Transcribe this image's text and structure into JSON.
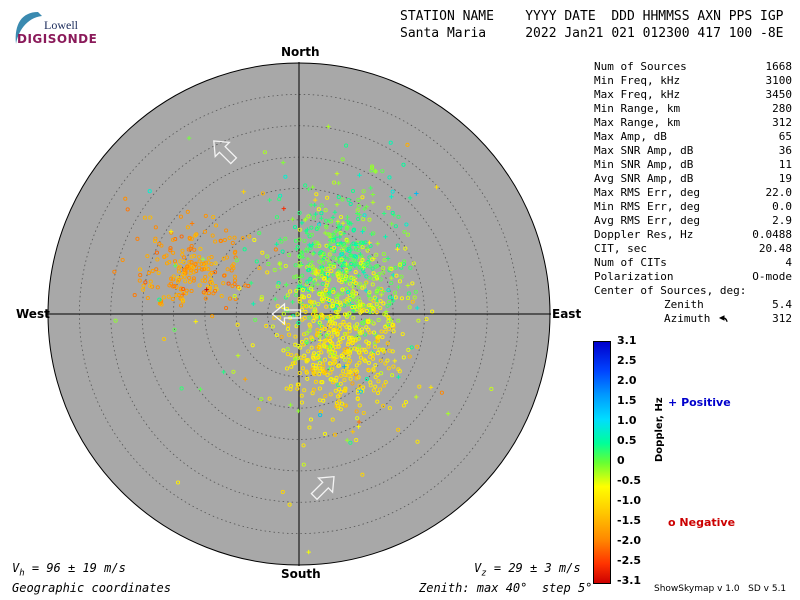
{
  "logo": {
    "line1": "Lowell",
    "line2": "DIGISONDE"
  },
  "header": {
    "names": "STATION NAME    YYYY DATE  DDD HHMMSS AXN PPS IGP",
    "values": "Santa Maria     2022 Jan21 021 012300 417 100 -8E"
  },
  "compass": {
    "north": "North",
    "south": "South",
    "east": "East",
    "west": "West"
  },
  "stats": [
    {
      "label": "Num of Sources",
      "value": "1668"
    },
    {
      "label": "Min Freq, kHz",
      "value": "3100"
    },
    {
      "label": "Max Freq, kHz",
      "value": "3450"
    },
    {
      "label": "Min Range, km",
      "value": "280"
    },
    {
      "label": "Max Range, km",
      "value": "312"
    },
    {
      "label": "Max Amp, dB",
      "value": "65"
    },
    {
      "label": "Max SNR Amp, dB",
      "value": "36"
    },
    {
      "label": "Min SNR Amp, dB",
      "value": "11"
    },
    {
      "label": "Avg SNR Amp, dB",
      "value": "19"
    },
    {
      "label": "Max RMS Err, deg",
      "value": "22.0"
    },
    {
      "label": "Min RMS Err, deg",
      "value": "0.0"
    },
    {
      "label": "Avg RMS Err, deg",
      "value": "2.9"
    },
    {
      "label": "Doppler Res, Hz",
      "value": "0.0488"
    },
    {
      "label": "CIT, sec",
      "value": "20.48"
    },
    {
      "label": "Num of CITs",
      "value": "4"
    },
    {
      "label": "Polarization",
      "value": "O-mode"
    }
  ],
  "center": {
    "title": "Center of Sources, deg:",
    "zenith_label": "Zenith",
    "zenith_value": "5.4",
    "azimuth_label": "Azimuth",
    "azimuth_value": "312"
  },
  "colorbar": {
    "label": "Doppler, Hz",
    "ticks": [
      "3.1",
      "2.5",
      "2.0",
      "1.5",
      "1.0",
      "0.5",
      "0",
      "-0.5",
      "-1.0",
      "-1.5",
      "-2.0",
      "-2.5",
      "-3.1"
    ],
    "min": -3.1,
    "max": 3.1
  },
  "legend": {
    "positive_symbol": "+",
    "positive_label": "Positive",
    "positive_color": "#0000cc",
    "negative_symbol": "o",
    "negative_label": "Negative",
    "negative_color": "#cc0000"
  },
  "footer": {
    "vh_prefix": "V",
    "vh_sub": "h",
    "vh_text": " = 96 ± 19 m/s",
    "vz_prefix": "V",
    "vz_sub": "z",
    "vz_text": " = 29 ± 3 m/s",
    "coords": "Geographic coordinates",
    "zenith": "Zenith: max 40°  step 5°",
    "software": "ShowSkymap v 1.0   SD v 5.1"
  },
  "chart_data": {
    "type": "scatter",
    "projection": "polar skymap (zenith angle radial, azimuth angular)",
    "zenith_max_deg": 40,
    "zenith_step_deg": 5,
    "color_scale": "Doppler, Hz from -3.1 to 3.1",
    "clusters": [
      {
        "center_east_deg": -17.5,
        "center_north_deg": 7.0,
        "spread_east_deg": 4.6,
        "spread_north_deg": 3.2,
        "count": 210,
        "doppler_hz": -1.6,
        "doppler_spread": 0.2,
        "marker": "o"
      },
      {
        "center_east_deg": 6.0,
        "center_north_deg": 8.5,
        "spread_east_deg": 5.2,
        "spread_north_deg": 6.0,
        "count": 520,
        "doppler_hz": 0.2,
        "doppler_spread": 0.3,
        "marker": "mixed"
      },
      {
        "center_east_deg": 6.0,
        "center_north_deg": -7.0,
        "spread_east_deg": 4.8,
        "spread_north_deg": 4.6,
        "count": 360,
        "doppler_hz": -0.9,
        "doppler_spread": 0.2,
        "marker": "o"
      },
      {
        "center_east_deg": 8.0,
        "center_north_deg": 1.5,
        "spread_east_deg": 5.5,
        "spread_north_deg": 4.0,
        "count": 200,
        "doppler_hz": -0.4,
        "doppler_spread": 0.2,
        "marker": "o"
      },
      {
        "center_east_deg": 2.0,
        "center_north_deg": 2.0,
        "spread_east_deg": 16.0,
        "spread_north_deg": 16.0,
        "count": 90,
        "doppler_hz": -0.3,
        "doppler_spread": 0.8,
        "marker": "mixed"
      }
    ],
    "arrows": [
      {
        "east_deg": -12.0,
        "north_deg": 26.0,
        "direction": "northwest"
      },
      {
        "east_deg": 4.0,
        "north_deg": -27.5,
        "direction": "northeast"
      },
      {
        "east_deg": -2.0,
        "north_deg": 0.0,
        "direction": "west"
      }
    ]
  }
}
